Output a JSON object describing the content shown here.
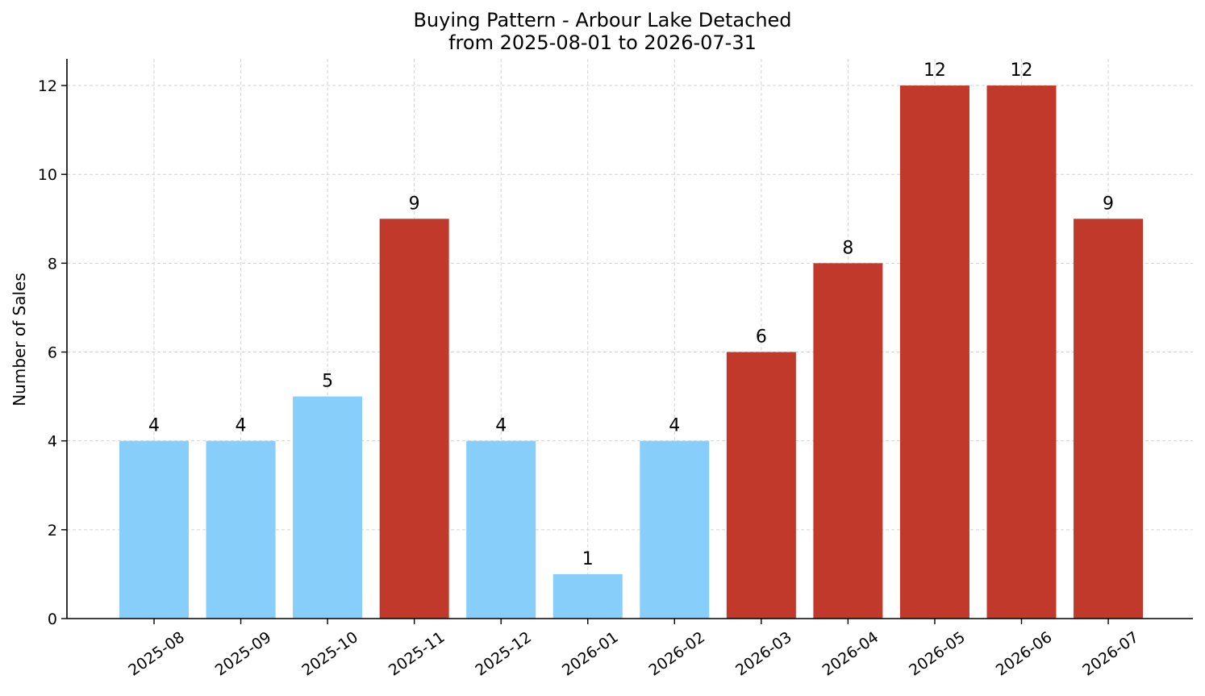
{
  "chart_data": {
    "type": "bar",
    "title": "Buying Pattern - Arbour Lake Detached",
    "subtitle": "from 2025-08-01 to 2026-07-31",
    "xlabel": "",
    "ylabel": "Number of Sales",
    "categories": [
      "2025-08",
      "2025-09",
      "2025-10",
      "2025-11",
      "2025-12",
      "2026-01",
      "2026-02",
      "2026-03",
      "2026-04",
      "2026-05",
      "2026-06",
      "2026-07"
    ],
    "values": [
      4,
      4,
      5,
      9,
      4,
      1,
      4,
      6,
      8,
      12,
      12,
      9
    ],
    "value_labels": [
      "4",
      "4",
      "5",
      "9",
      "4",
      "1",
      "4",
      "6",
      "8",
      "12",
      "12",
      "9"
    ],
    "highlight": [
      false,
      false,
      false,
      true,
      false,
      false,
      false,
      true,
      true,
      true,
      true,
      true
    ],
    "colors": {
      "normal": "#87CEFA",
      "highlight": "#C0392B"
    },
    "ylim": [
      0,
      12.6
    ],
    "yticks": [
      0,
      2,
      4,
      6,
      8,
      10,
      12
    ],
    "ytick_labels": [
      "0",
      "2",
      "4",
      "6",
      "8",
      "10",
      "12"
    ],
    "grid": true,
    "legend": "none"
  }
}
